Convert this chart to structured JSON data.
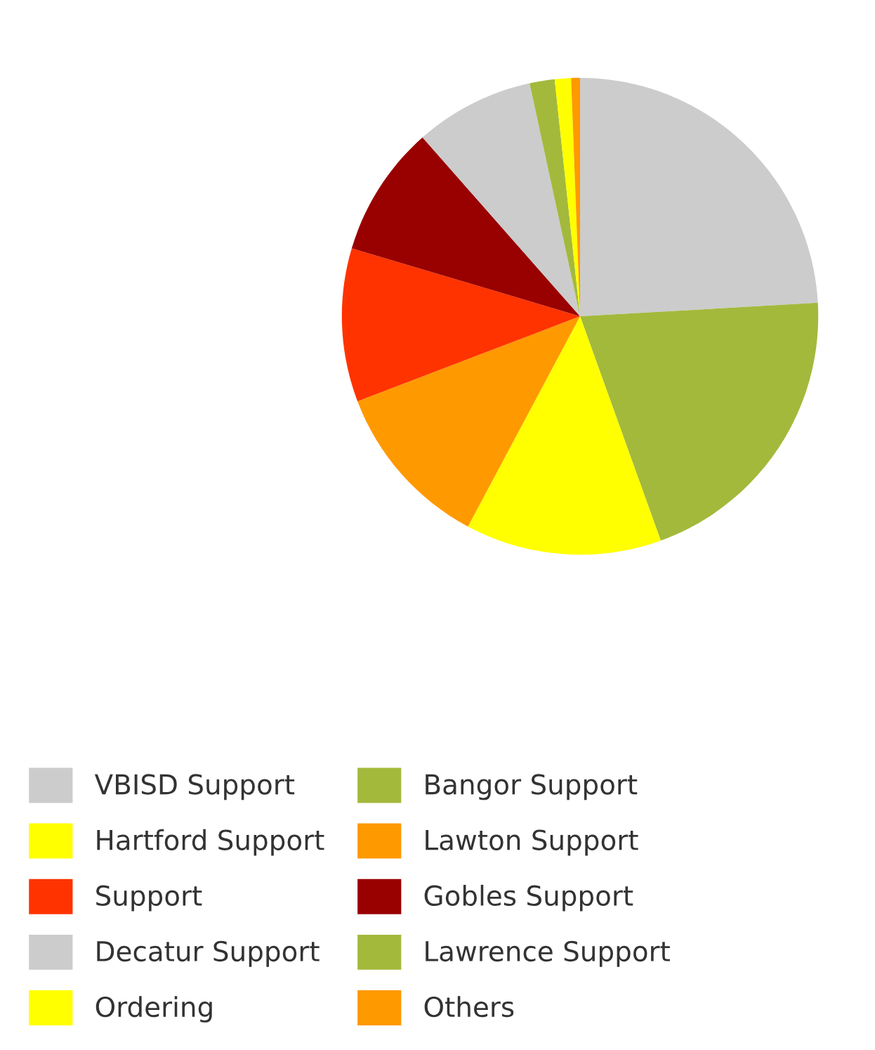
{
  "chart_data": {
    "type": "pie",
    "categories": [
      "VBISD Support",
      "Bangor Support",
      "Hartford Support",
      "Lawton Support",
      "Support",
      "Gobles Support",
      "Decatur Support",
      "Lawrence Support",
      "Ordering",
      "Others"
    ],
    "values": [
      24.1,
      20.4,
      13.3,
      11.4,
      10.4,
      8.9,
      8.1,
      1.7,
      1.1,
      0.6
    ],
    "colors": [
      "#cccccc",
      "#a3b93c",
      "#ffff00",
      "#ff9900",
      "#ff3300",
      "#990000",
      "#cccccc",
      "#a3b93c",
      "#ffff00",
      "#ff9900"
    ],
    "legend": "bottom"
  }
}
